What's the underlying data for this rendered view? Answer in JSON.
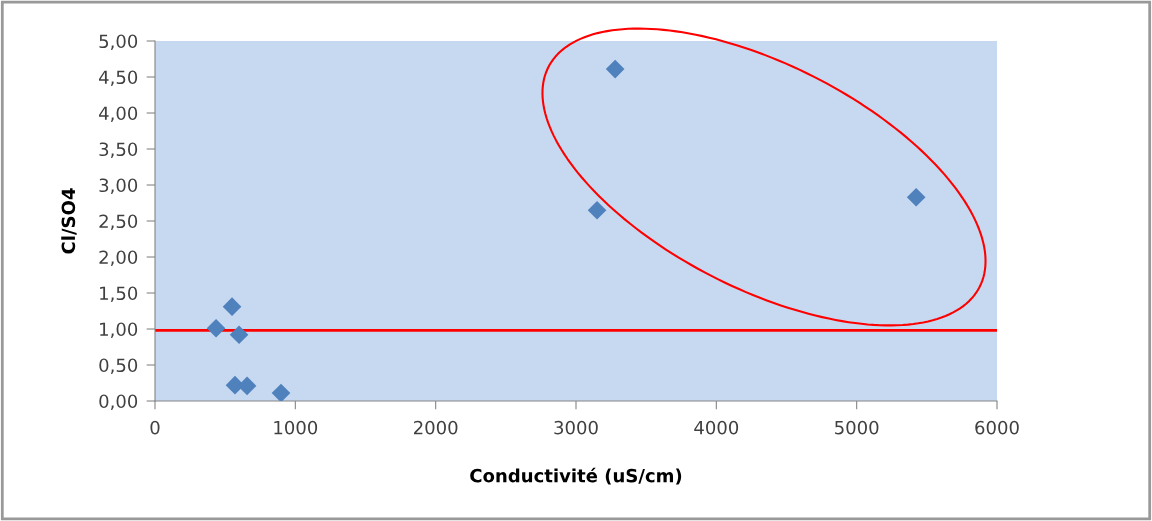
{
  "chart_data": {
    "type": "scatter",
    "xlabel": "Conductivité (uS/cm)",
    "ylabel": "Cl/SO4",
    "x": [
      435,
      549,
      599,
      570,
      656,
      898,
      3150,
      3279,
      5424
    ],
    "values": [
      1.01,
      1.31,
      0.92,
      0.22,
      0.21,
      0.11,
      2.65,
      4.61,
      2.83
    ],
    "color": "#4f81bd",
    "marker": "diamond",
    "xlim": [
      0,
      6000
    ],
    "xticks": [
      0,
      1000,
      2000,
      3000,
      4000,
      5000,
      6000
    ],
    "ylim": [
      0,
      5
    ],
    "yticks": [
      {
        "value": 0,
        "label": "0,00"
      },
      {
        "value": 0.5,
        "label": "0,50"
      },
      {
        "value": 1,
        "label": "1,00"
      },
      {
        "value": 1.5,
        "label": "1,50"
      },
      {
        "value": 2,
        "label": "2,00"
      },
      {
        "value": 2.5,
        "label": "2,50"
      },
      {
        "value": 3,
        "label": "3,00"
      },
      {
        "value": 3.5,
        "label": "3,50"
      },
      {
        "value": 4,
        "label": "4,00"
      },
      {
        "value": 4.5,
        "label": "4,50"
      },
      {
        "value": 5,
        "label": "5,00"
      }
    ],
    "ref_lines": [
      {
        "axis": "y",
        "value": 0.98,
        "color": "#ff0000"
      }
    ],
    "grid": false,
    "legend": false
  }
}
